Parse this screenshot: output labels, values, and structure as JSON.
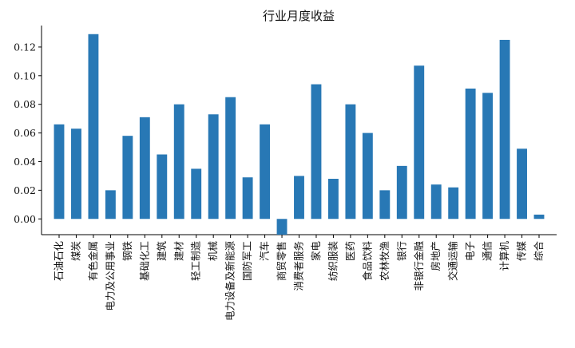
{
  "chart_data": {
    "type": "bar",
    "title": "行业月度收益",
    "xlabel": "",
    "ylabel": "",
    "ylim": [
      -0.011,
      0.135
    ],
    "yticks": [
      0.0,
      0.02,
      0.04,
      0.06,
      0.08,
      0.1,
      0.12
    ],
    "ytick_labels": [
      "0.00",
      "0.02",
      "0.04",
      "0.06",
      "0.08",
      "0.10",
      "0.12"
    ],
    "grid": false,
    "legend": "none",
    "bar_color": "#2878b5",
    "categories": [
      "石油石化",
      "煤炭",
      "有色金属",
      "电力及公用事业",
      "钢铁",
      "基础化工",
      "建筑",
      "建材",
      "轻工制造",
      "机械",
      "电力设备及新能源",
      "国防军工",
      "汽车",
      "商贸零售",
      "消费者服务",
      "家电",
      "纺织服装",
      "医药",
      "食品饮料",
      "农林牧渔",
      "银行",
      "非银行金融",
      "房地产",
      "交通运输",
      "电子",
      "通信",
      "计算机",
      "传媒",
      "综合"
    ],
    "values": [
      0.066,
      0.063,
      0.129,
      0.02,
      0.058,
      0.071,
      0.045,
      0.08,
      0.035,
      0.073,
      0.085,
      0.029,
      0.066,
      -0.011,
      0.03,
      0.094,
      0.028,
      0.08,
      0.06,
      0.02,
      0.037,
      0.107,
      0.024,
      0.022,
      0.091,
      0.088,
      0.125,
      0.049,
      0.003
    ]
  }
}
